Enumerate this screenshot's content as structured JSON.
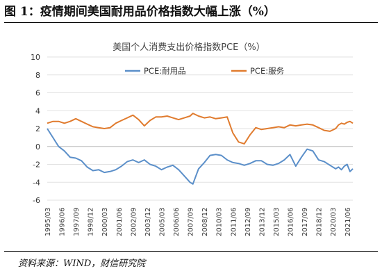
{
  "figure": {
    "title": "图 1：疫情期间美国耐用品价格指数大幅上涨（%）",
    "source": "资料来源：WIND，财信研究院"
  },
  "chart_data": {
    "type": "line",
    "title": "美国个人消费支出价格指数PCE（%）",
    "legend_position": "top",
    "ylim": [
      -6,
      10
    ],
    "yticks": [
      -6,
      -4,
      -2,
      0,
      2,
      4,
      6,
      8,
      10
    ],
    "x_start": "1995/03",
    "x_end": "2021/12",
    "xticks": [
      "1995/03",
      "1996/06",
      "1997/09",
      "1998/12",
      "2000/03",
      "2001/06",
      "2002/09",
      "2003/12",
      "2005/03",
      "2006/06",
      "2007/09",
      "2008/12",
      "2010/03",
      "2011/06",
      "2012/09",
      "2013/12",
      "2015/03",
      "2016/06",
      "2017/09",
      "2018/12",
      "2020/03",
      "2021/06"
    ],
    "series": [
      {
        "name": "PCE:耐用品",
        "color": "#5b8fc9",
        "points": [
          [
            "1995/03",
            2.0
          ],
          [
            "1995/09",
            1.0
          ],
          [
            "1996/03",
            0.0
          ],
          [
            "1996/09",
            -0.5
          ],
          [
            "1997/03",
            -1.2
          ],
          [
            "1997/09",
            -1.3
          ],
          [
            "1998/03",
            -1.6
          ],
          [
            "1998/09",
            -2.3
          ],
          [
            "1999/03",
            -2.7
          ],
          [
            "1999/09",
            -2.6
          ],
          [
            "2000/03",
            -2.9
          ],
          [
            "2000/09",
            -2.8
          ],
          [
            "2001/03",
            -2.6
          ],
          [
            "2001/09",
            -2.2
          ],
          [
            "2002/03",
            -1.7
          ],
          [
            "2002/09",
            -1.5
          ],
          [
            "2003/03",
            -1.8
          ],
          [
            "2003/09",
            -1.5
          ],
          [
            "2004/03",
            -2.0
          ],
          [
            "2004/09",
            -2.2
          ],
          [
            "2005/03",
            -2.6
          ],
          [
            "2005/09",
            -2.3
          ],
          [
            "2006/03",
            -2.1
          ],
          [
            "2006/09",
            -2.6
          ],
          [
            "2007/03",
            -3.3
          ],
          [
            "2007/09",
            -4.0
          ],
          [
            "2007/12",
            -4.2
          ],
          [
            "2008/06",
            -2.5
          ],
          [
            "2008/12",
            -1.8
          ],
          [
            "2009/06",
            -1.0
          ],
          [
            "2009/12",
            -0.9
          ],
          [
            "2010/06",
            -1.0
          ],
          [
            "2010/12",
            -1.5
          ],
          [
            "2011/06",
            -1.8
          ],
          [
            "2011/12",
            -1.9
          ],
          [
            "2012/06",
            -2.1
          ],
          [
            "2012/12",
            -1.9
          ],
          [
            "2013/06",
            -1.6
          ],
          [
            "2013/12",
            -1.6
          ],
          [
            "2014/06",
            -2.0
          ],
          [
            "2014/12",
            -2.1
          ],
          [
            "2015/06",
            -1.9
          ],
          [
            "2015/12",
            -1.5
          ],
          [
            "2016/06",
            -0.9
          ],
          [
            "2016/12",
            -2.2
          ],
          [
            "2017/06",
            -1.2
          ],
          [
            "2017/12",
            -0.3
          ],
          [
            "2018/06",
            -0.5
          ],
          [
            "2018/12",
            -1.5
          ],
          [
            "2019/06",
            -1.7
          ],
          [
            "2019/12",
            -2.1
          ],
          [
            "2020/06",
            -2.5
          ],
          [
            "2020/09",
            -2.3
          ],
          [
            "2020/12",
            -2.6
          ],
          [
            "2021/03",
            -2.2
          ],
          [
            "2021/06",
            -2.0
          ],
          [
            "2021/09",
            -2.8
          ],
          [
            "2021/12",
            -2.5
          ]
        ]
      },
      {
        "name": "PCE:服务",
        "color": "#e07b2e",
        "points": [
          [
            "1995/03",
            2.6
          ],
          [
            "1995/09",
            2.8
          ],
          [
            "1996/03",
            2.8
          ],
          [
            "1996/09",
            2.6
          ],
          [
            "1997/03",
            2.8
          ],
          [
            "1997/09",
            3.1
          ],
          [
            "1998/03",
            2.8
          ],
          [
            "1998/09",
            2.5
          ],
          [
            "1999/03",
            2.2
          ],
          [
            "1999/09",
            2.1
          ],
          [
            "2000/03",
            2.0
          ],
          [
            "2000/09",
            2.1
          ],
          [
            "2001/03",
            2.6
          ],
          [
            "2001/09",
            2.9
          ],
          [
            "2002/03",
            3.2
          ],
          [
            "2002/09",
            3.5
          ],
          [
            "2003/03",
            3.0
          ],
          [
            "2003/09",
            2.3
          ],
          [
            "2004/03",
            2.9
          ],
          [
            "2004/09",
            3.3
          ],
          [
            "2005/03",
            3.3
          ],
          [
            "2005/09",
            3.4
          ],
          [
            "2006/03",
            3.2
          ],
          [
            "2006/09",
            3.0
          ],
          [
            "2007/03",
            3.2
          ],
          [
            "2007/09",
            3.4
          ],
          [
            "2007/12",
            3.7
          ],
          [
            "2008/06",
            3.4
          ],
          [
            "2008/12",
            3.2
          ],
          [
            "2009/06",
            3.3
          ],
          [
            "2009/12",
            3.1
          ],
          [
            "2010/06",
            3.2
          ],
          [
            "2010/12",
            3.3
          ],
          [
            "2011/06",
            1.5
          ],
          [
            "2011/12",
            0.5
          ],
          [
            "2012/06",
            0.3
          ],
          [
            "2012/12",
            1.3
          ],
          [
            "2013/06",
            2.1
          ],
          [
            "2013/12",
            1.9
          ],
          [
            "2014/06",
            2.0
          ],
          [
            "2014/12",
            2.1
          ],
          [
            "2015/06",
            2.2
          ],
          [
            "2015/12",
            2.1
          ],
          [
            "2016/06",
            2.4
          ],
          [
            "2016/12",
            2.3
          ],
          [
            "2017/06",
            2.4
          ],
          [
            "2017/12",
            2.5
          ],
          [
            "2018/06",
            2.4
          ],
          [
            "2018/12",
            2.1
          ],
          [
            "2019/06",
            1.8
          ],
          [
            "2019/12",
            1.7
          ],
          [
            "2020/06",
            2.0
          ],
          [
            "2020/09",
            2.4
          ],
          [
            "2020/12",
            2.6
          ],
          [
            "2021/03",
            2.5
          ],
          [
            "2021/06",
            2.7
          ],
          [
            "2021/09",
            2.8
          ],
          [
            "2021/12",
            2.6
          ]
        ]
      }
    ]
  }
}
